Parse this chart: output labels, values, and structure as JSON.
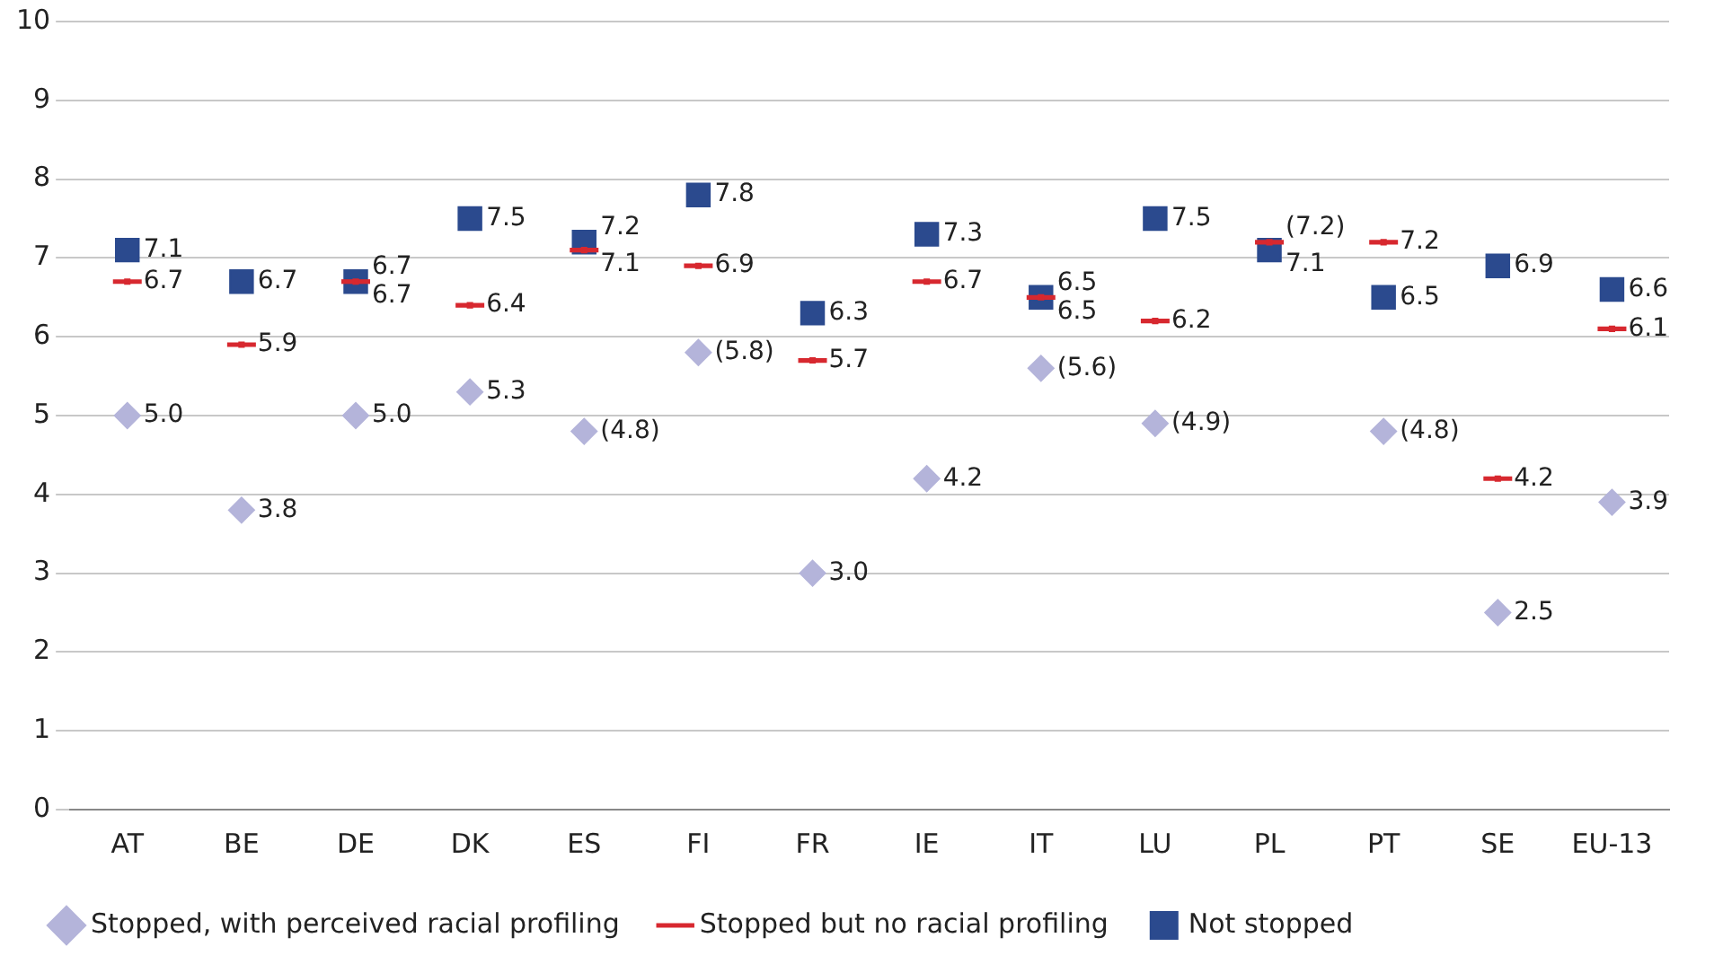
{
  "chart_data": {
    "type": "scatter",
    "categories": [
      "AT",
      "BE",
      "DE",
      "DK",
      "ES",
      "FI",
      "FR",
      "IE",
      "IT",
      "LU",
      "PL",
      "PT",
      "SE",
      "EU-13"
    ],
    "series": [
      {
        "name": "Not stopped",
        "color": "#2b4a8e",
        "marker": "square",
        "values": [
          7.1,
          6.7,
          6.7,
          7.5,
          7.2,
          7.8,
          6.3,
          7.3,
          6.5,
          7.5,
          7.1,
          6.5,
          6.9,
          6.6
        ],
        "value_labels": [
          "7.1",
          "6.7",
          "6.7",
          "7.5",
          "7.2",
          "7.8",
          "6.3",
          "7.3",
          "6.5",
          "7.5",
          "7.1",
          "6.5",
          "6.9",
          "6.6"
        ]
      },
      {
        "name": "Stopped but no racial profiling",
        "color": "#d7282f",
        "values": [
          6.7,
          5.9,
          6.7,
          6.4,
          7.1,
          6.9,
          5.7,
          6.7,
          6.5,
          6.2,
          7.2,
          7.2,
          4.2,
          6.1
        ],
        "value_labels": [
          "6.7",
          "5.9",
          "6.7",
          "6.4",
          "7.1",
          "6.9",
          "5.7",
          "6.7",
          "6.5",
          "6.2",
          "(7.2)",
          "7.2",
          "4.2",
          "6.1"
        ]
      },
      {
        "name": "Stopped, with perceived racial profiling",
        "color": "#b4b4da",
        "marker": "diamond",
        "values": [
          5.0,
          3.8,
          5.0,
          5.3,
          4.8,
          5.8,
          3.0,
          4.2,
          5.6,
          4.9,
          null,
          4.8,
          2.5,
          3.9
        ],
        "value_labels": [
          "5.0",
          "3.8",
          "5.0",
          "5.3",
          "(4.8)",
          "(5.8)",
          "3.0",
          "4.2",
          "(5.6)",
          "(4.9)",
          null,
          "(4.8)",
          "2.5",
          "3.9"
        ]
      }
    ],
    "ylim": [
      0,
      10
    ],
    "yticks": [
      0,
      1,
      2,
      3,
      4,
      5,
      6,
      7,
      8,
      9,
      10
    ],
    "grid": "y",
    "legend": "bottom"
  }
}
